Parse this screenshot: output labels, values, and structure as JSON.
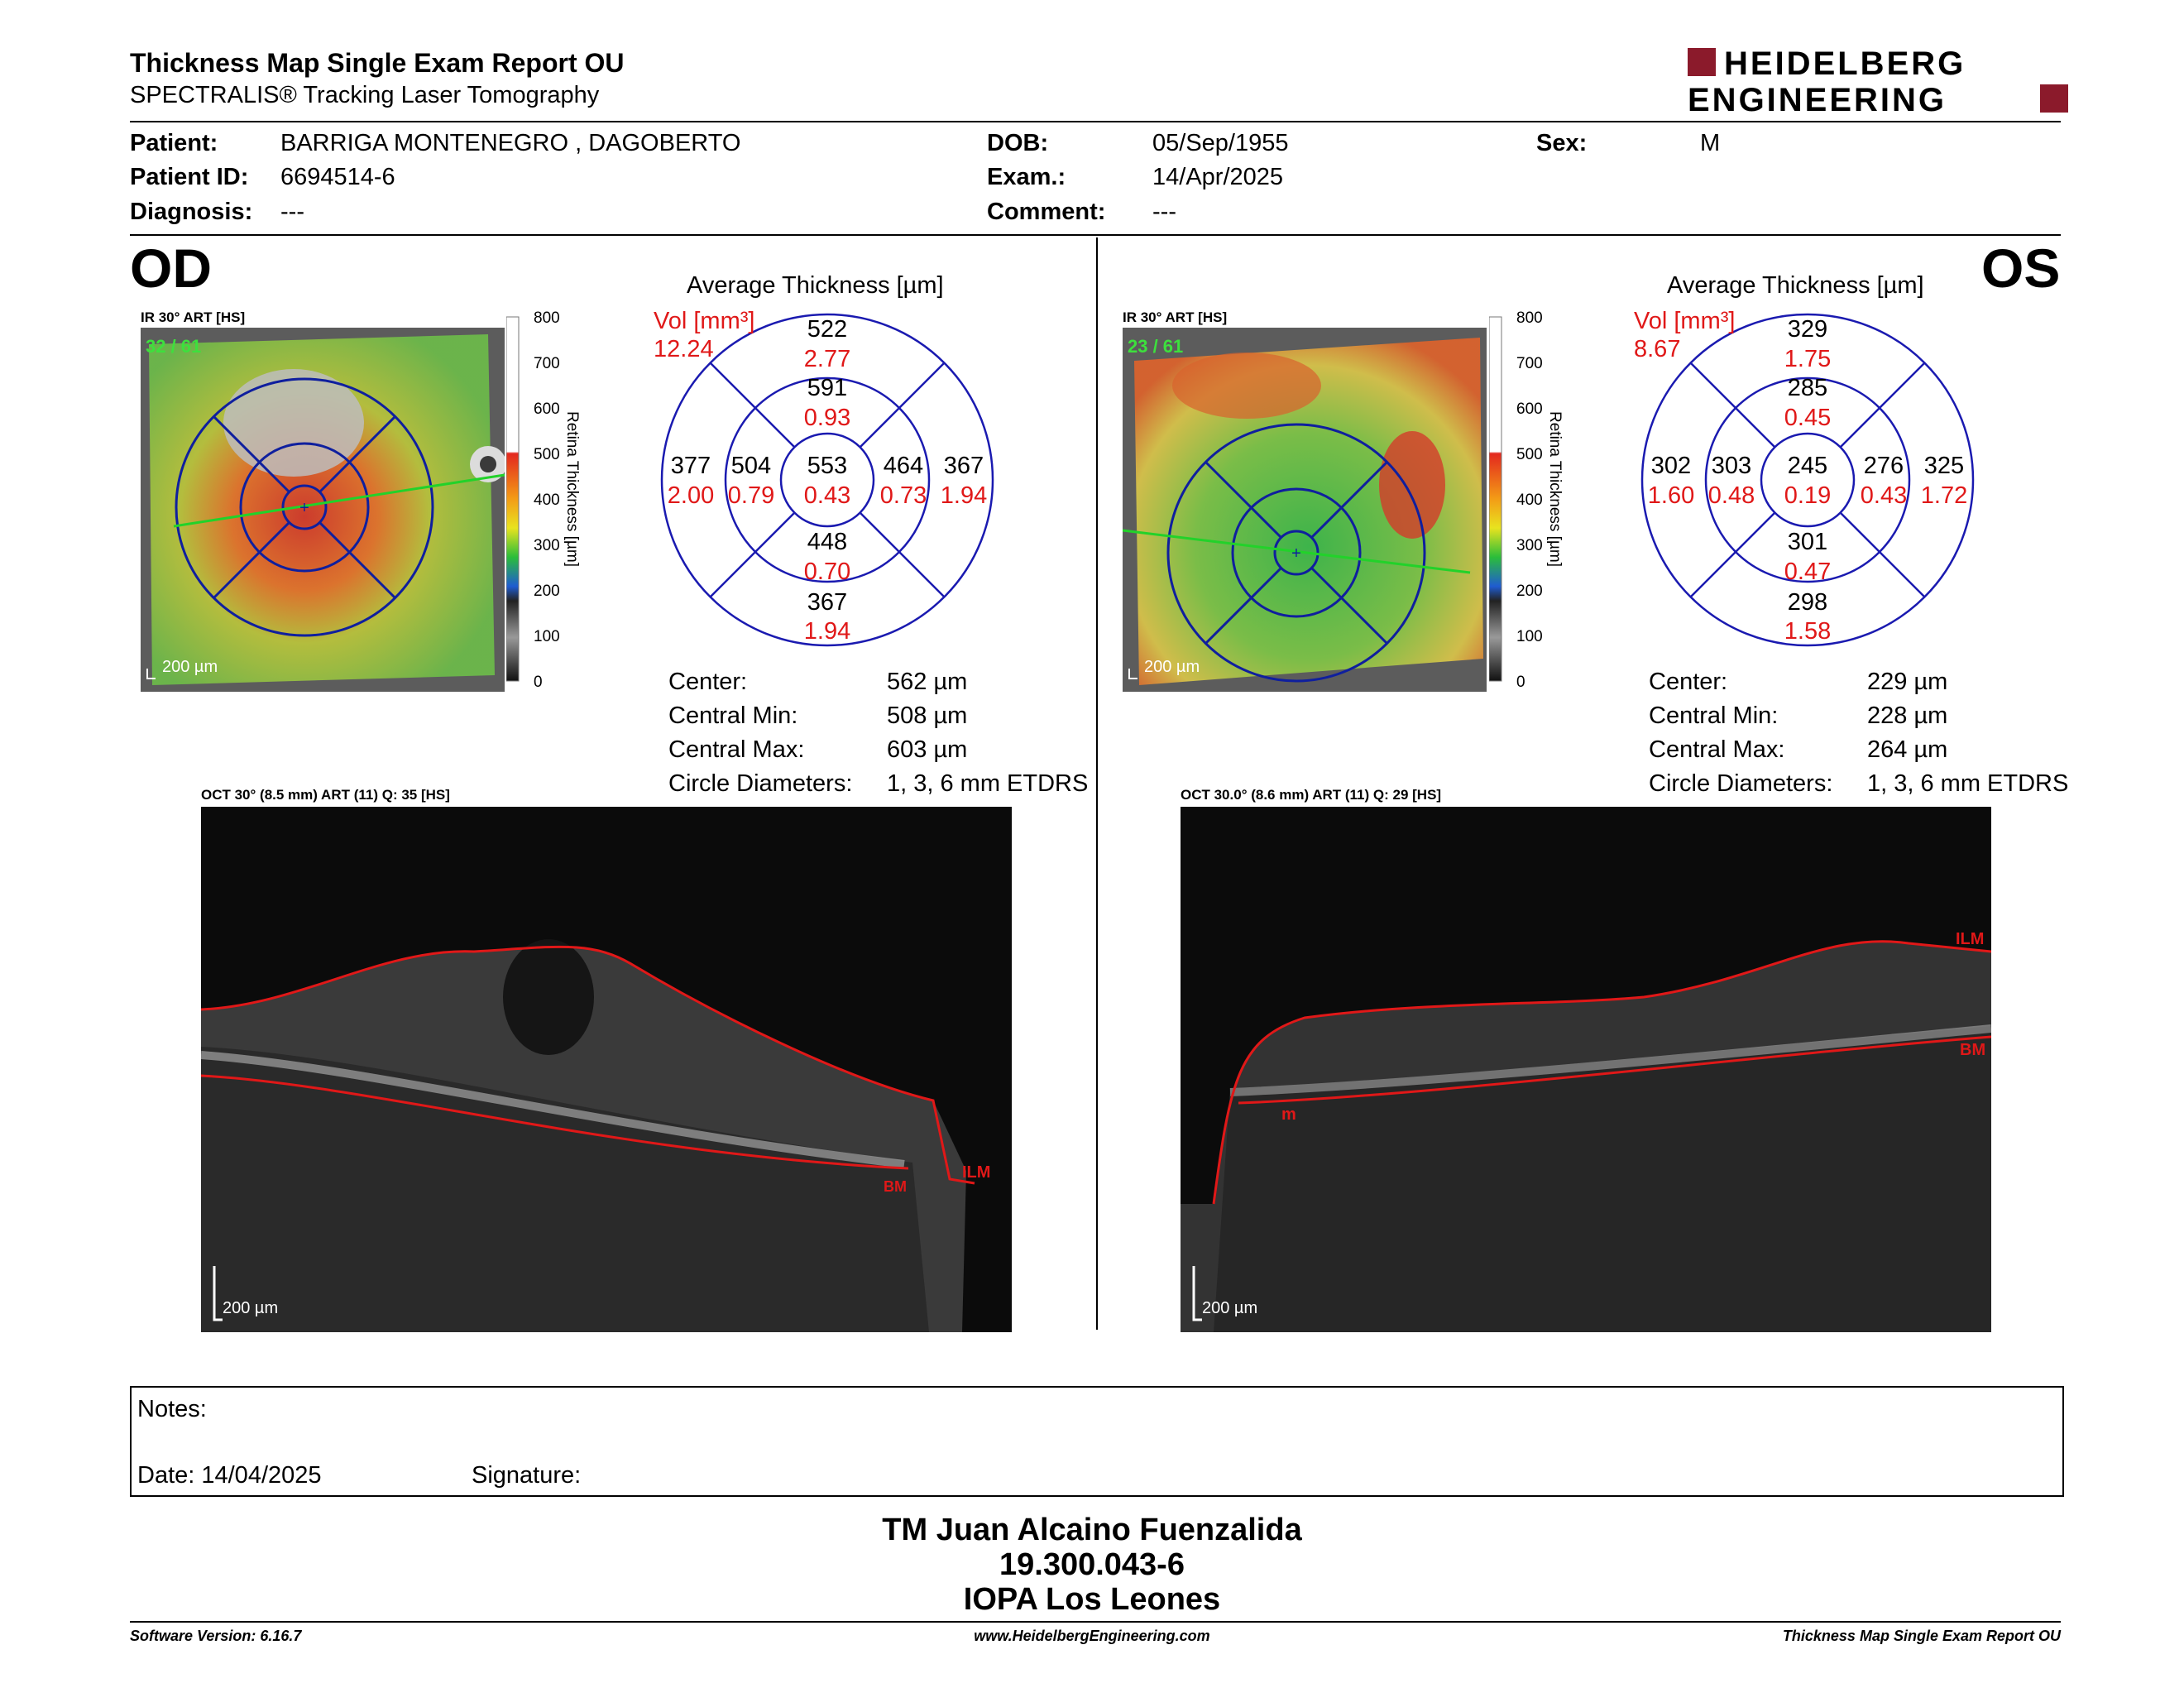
{
  "report": {
    "title": "Thickness Map Single Exam Report OU",
    "subtitle": "SPECTRALIS® Tracking Laser Tomography"
  },
  "logo": {
    "line1": "HEIDELBERG",
    "line2": "ENGINEERING",
    "accent": "#8b1a2b"
  },
  "patient": {
    "patient_label": "Patient:",
    "patient_value": "BARRIGA MONTENEGRO , DAGOBERTO",
    "id_label": "Patient ID:",
    "id_value": "6694514-6",
    "diagnosis_label": "Diagnosis:",
    "diagnosis_value": "---",
    "dob_label": "DOB:",
    "dob_value": "05/Sep/1955",
    "exam_label": "Exam.:",
    "exam_value": "14/Apr/2025",
    "comment_label": "Comment:",
    "comment_value": "---",
    "sex_label": "Sex:",
    "sex_value": "M"
  },
  "od": {
    "eye": "OD",
    "ir_caption": "IR 30° ART [HS]",
    "frame_count": "32 / 61",
    "scale": "200 µm",
    "avg_title": "Average Thickness [µm]",
    "vol_label": "Vol [mm³]",
    "vol_total": "12.24",
    "sectors": {
      "center": {
        "t": "553",
        "v": "0.43"
      },
      "inner_sup": {
        "t": "591",
        "v": "0.93"
      },
      "inner_nas": {
        "t": "504",
        "v": "0.79"
      },
      "inner_inf": {
        "t": "448",
        "v": "0.70"
      },
      "inner_tmp": {
        "t": "464",
        "v": "0.73"
      },
      "outer_sup": {
        "t": "522",
        "v": "2.77"
      },
      "outer_nas": {
        "t": "377",
        "v": "2.00"
      },
      "outer_inf": {
        "t": "367",
        "v": "1.94"
      },
      "outer_tmp": {
        "t": "367",
        "v": "1.94"
      }
    },
    "stats": [
      {
        "k": "Center:",
        "v": "562 µm"
      },
      {
        "k": "Central Min:",
        "v": "508 µm"
      },
      {
        "k": "Central Max:",
        "v": "603 µm"
      },
      {
        "k": "Circle Diameters:",
        "v": "1, 3, 6 mm ETDRS"
      }
    ],
    "oct_caption": "OCT 30° (8.5 mm) ART (11) Q: 35 [HS]",
    "oct_scale": "200 µm",
    "ilm": "ILM",
    "bm": "BM"
  },
  "os": {
    "eye": "OS",
    "ir_caption": "IR 30° ART [HS]",
    "frame_count": "23 / 61",
    "scale": "200 µm",
    "avg_title": "Average Thickness [µm]",
    "vol_label": "Vol [mm³]",
    "vol_total": "8.67",
    "sectors": {
      "center": {
        "t": "245",
        "v": "0.19"
      },
      "inner_sup": {
        "t": "285",
        "v": "0.45"
      },
      "inner_nas": {
        "t": "303",
        "v": "0.48"
      },
      "inner_inf": {
        "t": "301",
        "v": "0.47"
      },
      "inner_tmp": {
        "t": "276",
        "v": "0.43"
      },
      "outer_sup": {
        "t": "329",
        "v": "1.75"
      },
      "outer_nas": {
        "t": "302",
        "v": "1.60"
      },
      "outer_inf": {
        "t": "298",
        "v": "1.58"
      },
      "outer_tmp": {
        "t": "325",
        "v": "1.72"
      }
    },
    "stats": [
      {
        "k": "Center:",
        "v": "229 µm"
      },
      {
        "k": "Central Min:",
        "v": "228 µm"
      },
      {
        "k": "Central Max:",
        "v": "264 µm"
      },
      {
        "k": "Circle Diameters:",
        "v": "1, 3, 6 mm ETDRS"
      }
    ],
    "oct_caption": "OCT 30.0° (8.6 mm) ART (11) Q: 29 [HS]",
    "oct_scale": "200 µm",
    "ilm": "ILM",
    "bm": "BM",
    "m": "m"
  },
  "colorbar": {
    "ticks": [
      "800",
      "700",
      "600",
      "500",
      "400",
      "300",
      "200",
      "100",
      "0"
    ],
    "label": "Retina  Thickness [µm]"
  },
  "notes": {
    "label": "Notes:",
    "date": "Date: 14/04/2025",
    "signature": "Signature:"
  },
  "signer": {
    "name": "TM Juan Alcaino Fuenzalida",
    "id": "19.300.043-6",
    "place": "IOPA Los Leones"
  },
  "footer": {
    "version": "Software Version: 6.16.7",
    "url": "www.HeidelbergEngineering.com",
    "report": "Thickness Map Single Exam Report OU"
  }
}
